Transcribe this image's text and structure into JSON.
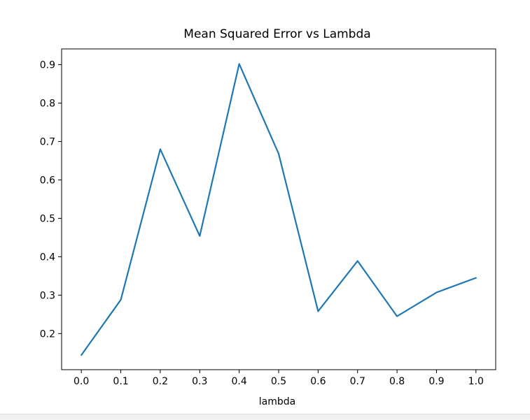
{
  "chart_data": {
    "type": "line",
    "title": "Mean Squared Error vs Lambda",
    "xlabel": "lambda",
    "ylabel": "",
    "x": [
      0.0,
      0.1,
      0.2,
      0.3,
      0.4,
      0.5,
      0.6,
      0.7,
      0.8,
      0.9,
      1.0
    ],
    "series": [
      {
        "values": [
          0.144,
          0.288,
          0.68,
          0.454,
          0.902,
          0.668,
          0.258,
          0.389,
          0.245,
          0.307,
          0.345
        ],
        "color": "#1f77b4"
      }
    ],
    "xlim": [
      -0.05,
      1.05
    ],
    "ylim": [
      0.106,
      0.941
    ],
    "xticks": [
      0.0,
      0.1,
      0.2,
      0.3,
      0.4,
      0.5,
      0.6,
      0.7,
      0.8,
      0.9,
      1.0
    ],
    "xtick_labels": [
      "0.0",
      "0.1",
      "0.2",
      "0.3",
      "0.4",
      "0.5",
      "0.6",
      "0.7",
      "0.8",
      "0.9",
      "1.0"
    ],
    "yticks": [
      0.2,
      0.3,
      0.4,
      0.5,
      0.6,
      0.7,
      0.8,
      0.9
    ],
    "ytick_labels": [
      "0.2",
      "0.3",
      "0.4",
      "0.5",
      "0.6",
      "0.7",
      "0.8",
      "0.9"
    ],
    "grid": false,
    "legend": "none"
  }
}
